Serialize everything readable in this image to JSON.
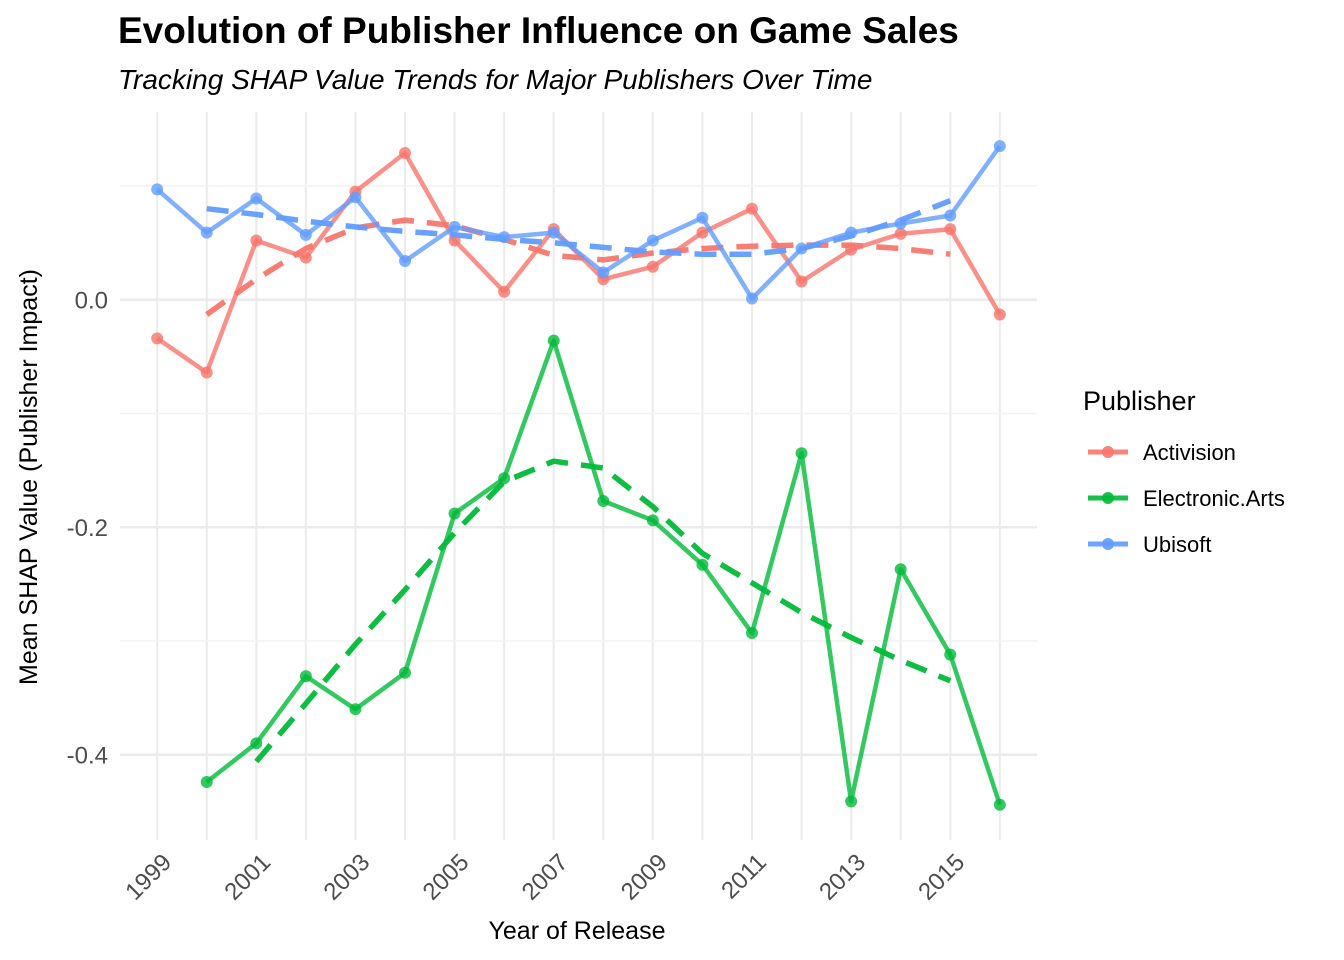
{
  "chart_data": {
    "type": "line",
    "title": "Evolution of Publisher Influence on Game Sales",
    "subtitle": "Tracking SHAP Value Trends for Major Publishers Over Time",
    "xlabel": "Year of Release",
    "ylabel": "Mean SHAP Value (Publisher Impact)",
    "xlim": [
      1998.25,
      2016.75
    ],
    "ylim": [
      -0.475,
      0.165
    ],
    "x_ticks": [
      1999,
      2001,
      2003,
      2005,
      2007,
      2009,
      2011,
      2013,
      2015
    ],
    "y_ticks": [
      0.0,
      -0.2,
      -0.4
    ],
    "y_tick_labels": [
      "0.0",
      "-0.2",
      "-0.4"
    ],
    "grid": true,
    "legend": {
      "title": "Publisher",
      "position": "right"
    },
    "series": [
      {
        "name": "Activision",
        "color": "#F8766D",
        "points": [
          [
            1999,
            -0.034
          ],
          [
            2000,
            -0.064
          ],
          [
            2001,
            0.052
          ],
          [
            2002,
            0.037
          ],
          [
            2003,
            0.095
          ],
          [
            2004,
            0.129
          ],
          [
            2005,
            0.052
          ],
          [
            2006,
            0.007
          ],
          [
            2007,
            0.062
          ],
          [
            2008,
            0.018
          ],
          [
            2009,
            0.029
          ],
          [
            2010,
            0.059
          ],
          [
            2011,
            0.08
          ],
          [
            2012,
            0.016
          ],
          [
            2013,
            0.044
          ],
          [
            2014,
            0.058
          ],
          [
            2015,
            0.062
          ],
          [
            2016,
            -0.013
          ]
        ],
        "trend": [
          [
            2000,
            -0.013
          ],
          [
            2001,
            0.018
          ],
          [
            2002,
            0.045
          ],
          [
            2003,
            0.063
          ],
          [
            2004,
            0.07
          ],
          [
            2005,
            0.065
          ],
          [
            2006,
            0.053
          ],
          [
            2007,
            0.039
          ],
          [
            2008,
            0.035
          ],
          [
            2009,
            0.041
          ],
          [
            2010,
            0.045
          ],
          [
            2011,
            0.047
          ],
          [
            2012,
            0.048
          ],
          [
            2013,
            0.048
          ],
          [
            2014,
            0.045
          ],
          [
            2015,
            0.04
          ]
        ]
      },
      {
        "name": "Electronic.Arts",
        "color": "#00BA38",
        "points": [
          [
            2000,
            -0.424
          ],
          [
            2001,
            -0.39
          ],
          [
            2002,
            -0.331
          ],
          [
            2003,
            -0.36
          ],
          [
            2004,
            -0.328
          ],
          [
            2005,
            -0.188
          ],
          [
            2006,
            -0.157
          ],
          [
            2007,
            -0.036
          ],
          [
            2008,
            -0.177
          ],
          [
            2009,
            -0.194
          ],
          [
            2010,
            -0.233
          ],
          [
            2011,
            -0.293
          ],
          [
            2012,
            -0.135
          ],
          [
            2013,
            -0.441
          ],
          [
            2014,
            -0.237
          ],
          [
            2015,
            -0.312
          ],
          [
            2016,
            -0.444
          ]
        ],
        "trend": [
          [
            2001,
            -0.406
          ],
          [
            2002,
            -0.355
          ],
          [
            2003,
            -0.303
          ],
          [
            2004,
            -0.255
          ],
          [
            2005,
            -0.205
          ],
          [
            2006,
            -0.16
          ],
          [
            2007,
            -0.142
          ],
          [
            2008,
            -0.148
          ],
          [
            2009,
            -0.182
          ],
          [
            2010,
            -0.223
          ],
          [
            2011,
            -0.249
          ],
          [
            2012,
            -0.275
          ],
          [
            2013,
            -0.297
          ],
          [
            2014,
            -0.317
          ],
          [
            2015,
            -0.335
          ]
        ]
      },
      {
        "name": "Ubisoft",
        "color": "#619CFF",
        "points": [
          [
            1999,
            0.097
          ],
          [
            2000,
            0.059
          ],
          [
            2001,
            0.089
          ],
          [
            2002,
            0.057
          ],
          [
            2003,
            0.09
          ],
          [
            2004,
            0.034
          ],
          [
            2005,
            0.064
          ],
          [
            2006,
            0.055
          ],
          [
            2007,
            0.059
          ],
          [
            2008,
            0.024
          ],
          [
            2009,
            0.052
          ],
          [
            2010,
            0.072
          ],
          [
            2011,
            0.001
          ],
          [
            2012,
            0.045
          ],
          [
            2013,
            0.059
          ],
          [
            2014,
            0.067
          ],
          [
            2015,
            0.074
          ],
          [
            2016,
            0.135
          ]
        ],
        "trend": [
          [
            2000,
            0.08
          ],
          [
            2001,
            0.075
          ],
          [
            2002,
            0.069
          ],
          [
            2003,
            0.064
          ],
          [
            2004,
            0.06
          ],
          [
            2005,
            0.057
          ],
          [
            2006,
            0.053
          ],
          [
            2007,
            0.05
          ],
          [
            2008,
            0.046
          ],
          [
            2009,
            0.042
          ],
          [
            2010,
            0.04
          ],
          [
            2011,
            0.04
          ],
          [
            2012,
            0.045
          ],
          [
            2013,
            0.056
          ],
          [
            2014,
            0.07
          ],
          [
            2015,
            0.087
          ]
        ]
      }
    ]
  }
}
